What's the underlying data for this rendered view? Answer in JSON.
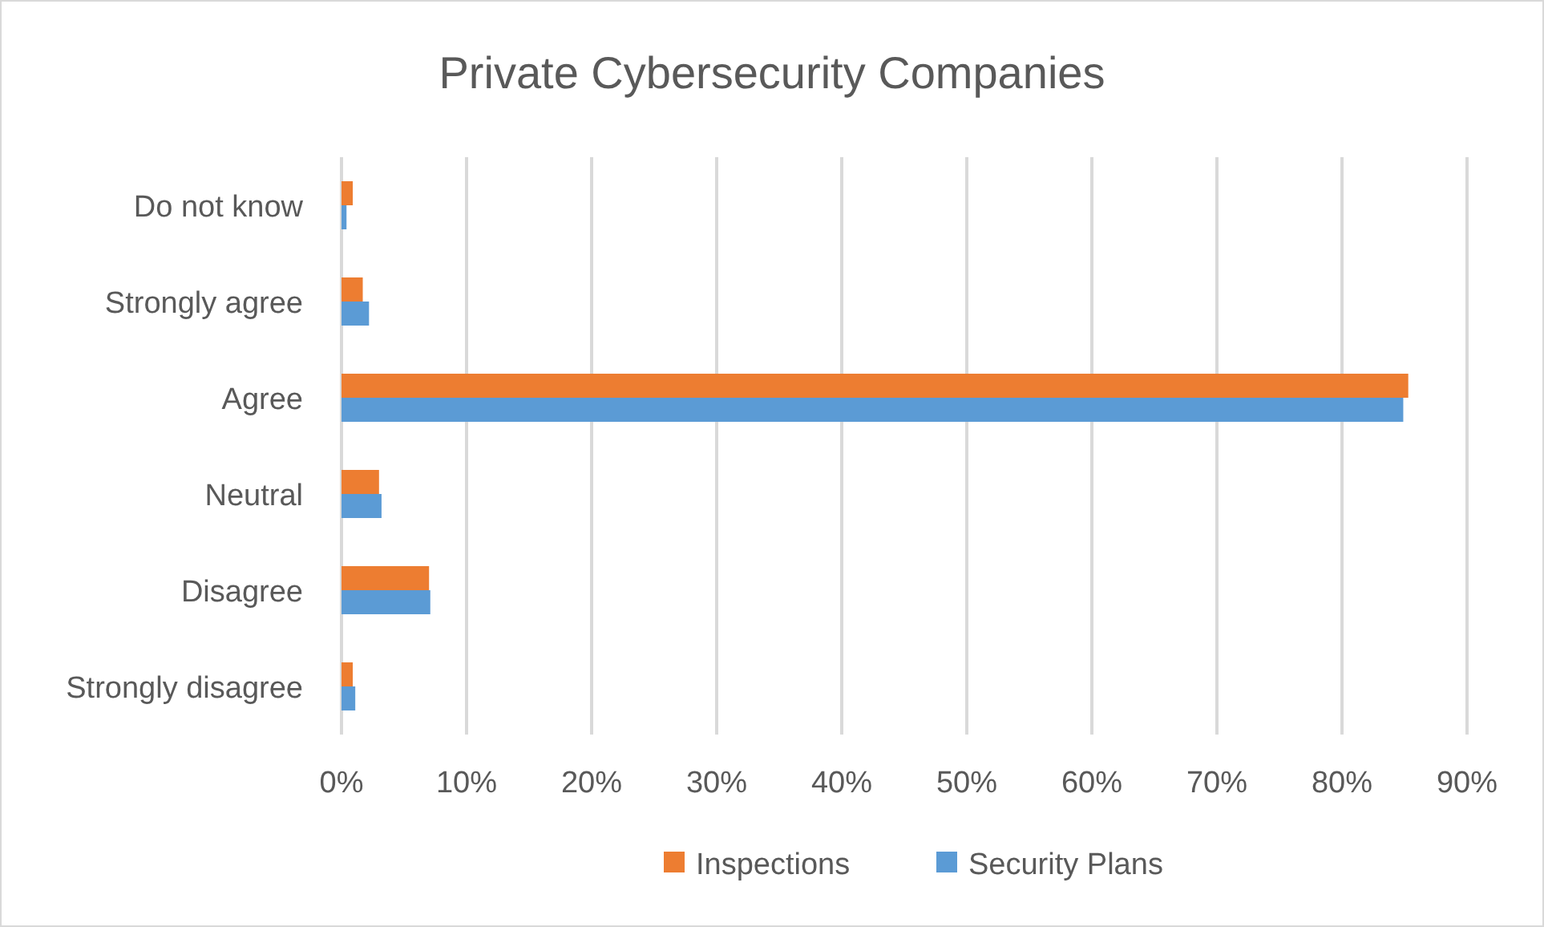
{
  "chart_data": {
    "type": "bar",
    "orientation": "horizontal",
    "title": "Private Cybersecurity Companies",
    "categories": [
      "Do not know",
      "Strongly agree",
      "Agree",
      "Neutral",
      "Disagree",
      "Strongly disagree"
    ],
    "series": [
      {
        "name": "Inspections",
        "color": "#ed7d31",
        "values": [
          0.9,
          1.7,
          85.3,
          3.0,
          7.0,
          0.9
        ]
      },
      {
        "name": "Security Plans",
        "color": "#5b9bd5",
        "values": [
          0.4,
          2.2,
          84.9,
          3.2,
          7.1,
          1.1
        ]
      }
    ],
    "xlim": [
      0,
      90
    ],
    "xticks": [
      {
        "value": 0,
        "label": "0%"
      },
      {
        "value": 10,
        "label": "10%"
      },
      {
        "value": 20,
        "label": "20%"
      },
      {
        "value": 30,
        "label": "30%"
      },
      {
        "value": 40,
        "label": "40%"
      },
      {
        "value": 50,
        "label": "50%"
      },
      {
        "value": 60,
        "label": "60%"
      },
      {
        "value": 70,
        "label": "70%"
      },
      {
        "value": 80,
        "label": "80%"
      },
      {
        "value": 90,
        "label": "90%"
      }
    ],
    "grid": "x",
    "legend": "bottom"
  }
}
